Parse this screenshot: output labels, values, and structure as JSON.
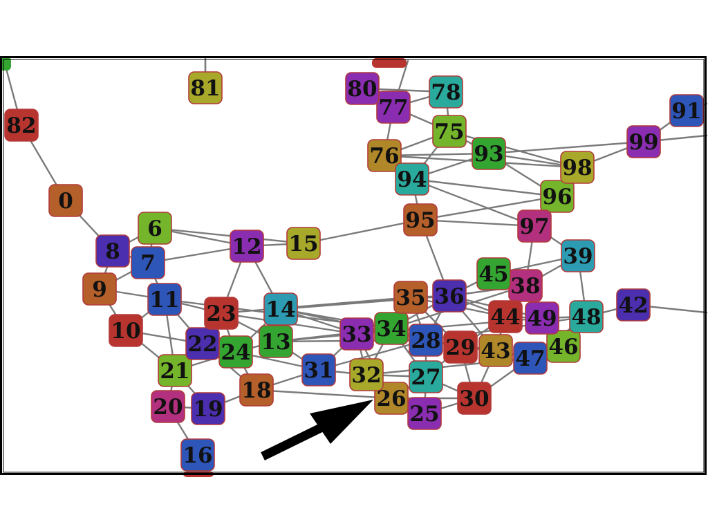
{
  "colors": {
    "edge": "#7a7a7a",
    "node_border": "#b23a3a",
    "frame": "#000000",
    "arrow": "#000000",
    "red": "#b8352f",
    "orange": "#b5602a",
    "olive": "#a8a82a",
    "green": "#35a532",
    "lime": "#74b52c",
    "teal": "#2aa99d",
    "cyan": "#2d9cb2",
    "blue": "#2e55b8",
    "indigo": "#4b2fae",
    "purple": "#8a2db0",
    "magenta": "#b3307e",
    "gold": "#b0882a"
  },
  "nodes": [
    {
      "id": "0",
      "color": "orange"
    },
    {
      "id": "6",
      "color": "lime"
    },
    {
      "id": "7",
      "color": "blue"
    },
    {
      "id": "8",
      "color": "indigo"
    },
    {
      "id": "9",
      "color": "orange"
    },
    {
      "id": "10",
      "color": "red"
    },
    {
      "id": "11",
      "color": "blue"
    },
    {
      "id": "12",
      "color": "purple"
    },
    {
      "id": "13",
      "color": "green"
    },
    {
      "id": "14",
      "color": "cyan"
    },
    {
      "id": "15",
      "color": "olive"
    },
    {
      "id": "16",
      "color": "blue"
    },
    {
      "id": "18",
      "color": "orange"
    },
    {
      "id": "19",
      "color": "indigo"
    },
    {
      "id": "20",
      "color": "magenta"
    },
    {
      "id": "21",
      "color": "lime"
    },
    {
      "id": "22",
      "color": "indigo"
    },
    {
      "id": "23",
      "color": "red"
    },
    {
      "id": "24",
      "color": "green"
    },
    {
      "id": "25",
      "color": "purple"
    },
    {
      "id": "26",
      "color": "gold"
    },
    {
      "id": "27",
      "color": "teal"
    },
    {
      "id": "28",
      "color": "blue"
    },
    {
      "id": "29",
      "color": "red"
    },
    {
      "id": "30",
      "color": "red"
    },
    {
      "id": "31",
      "color": "blue"
    },
    {
      "id": "32",
      "color": "olive"
    },
    {
      "id": "33",
      "color": "purple"
    },
    {
      "id": "34",
      "color": "green"
    },
    {
      "id": "35",
      "color": "orange"
    },
    {
      "id": "36",
      "color": "indigo"
    },
    {
      "id": "38",
      "color": "magenta"
    },
    {
      "id": "39",
      "color": "cyan"
    },
    {
      "id": "42",
      "color": "indigo"
    },
    {
      "id": "43",
      "color": "gold"
    },
    {
      "id": "44",
      "color": "red"
    },
    {
      "id": "45",
      "color": "green"
    },
    {
      "id": "46",
      "color": "lime"
    },
    {
      "id": "47",
      "color": "blue"
    },
    {
      "id": "48",
      "color": "teal"
    },
    {
      "id": "49",
      "color": "purple"
    },
    {
      "id": "75",
      "color": "lime"
    },
    {
      "id": "76",
      "color": "gold"
    },
    {
      "id": "77",
      "color": "purple"
    },
    {
      "id": "78",
      "color": "teal"
    },
    {
      "id": "80",
      "color": "purple"
    },
    {
      "id": "81",
      "color": "olive"
    },
    {
      "id": "82",
      "color": "red"
    },
    {
      "id": "91",
      "color": "blue"
    },
    {
      "id": "93",
      "color": "green"
    },
    {
      "id": "94",
      "color": "teal"
    },
    {
      "id": "95",
      "color": "orange"
    },
    {
      "id": "96",
      "color": "lime"
    },
    {
      "id": "97",
      "color": "magenta"
    },
    {
      "id": "98",
      "color": "olive"
    },
    {
      "id": "99",
      "color": "purple"
    }
  ],
  "edges": [
    [
      "82",
      "0"
    ],
    [
      "0",
      "8"
    ],
    [
      "8",
      "7"
    ],
    [
      "8",
      "6"
    ],
    [
      "8",
      "9"
    ],
    [
      "7",
      "6"
    ],
    [
      "7",
      "12"
    ],
    [
      "6",
      "12"
    ],
    [
      "6",
      "15"
    ],
    [
      "12",
      "15"
    ],
    [
      "15",
      "95"
    ],
    [
      "7",
      "9"
    ],
    [
      "9",
      "10"
    ],
    [
      "9",
      "11"
    ],
    [
      "7",
      "11"
    ],
    [
      "10",
      "11"
    ],
    [
      "10",
      "22"
    ],
    [
      "11",
      "22"
    ],
    [
      "11",
      "23"
    ],
    [
      "12",
      "23"
    ],
    [
      "12",
      "14"
    ],
    [
      "10",
      "21"
    ],
    [
      "11",
      "21"
    ],
    [
      "21",
      "20"
    ],
    [
      "21",
      "19"
    ],
    [
      "20",
      "19"
    ],
    [
      "20",
      "16"
    ],
    [
      "21",
      "22"
    ],
    [
      "21",
      "24"
    ],
    [
      "22",
      "24"
    ],
    [
      "22",
      "23"
    ],
    [
      "23",
      "24"
    ],
    [
      "23",
      "13"
    ],
    [
      "14",
      "13"
    ],
    [
      "14",
      "24"
    ],
    [
      "13",
      "24"
    ],
    [
      "13",
      "31"
    ],
    [
      "24",
      "18"
    ],
    [
      "18",
      "31"
    ],
    [
      "19",
      "18"
    ],
    [
      "22",
      "18"
    ],
    [
      "14",
      "33"
    ],
    [
      "13",
      "33"
    ],
    [
      "14",
      "34"
    ],
    [
      "13",
      "34"
    ],
    [
      "11",
      "34"
    ],
    [
      "23",
      "33"
    ],
    [
      "23",
      "35"
    ],
    [
      "14",
      "35"
    ],
    [
      "14",
      "36"
    ],
    [
      "31",
      "32"
    ],
    [
      "31",
      "33"
    ],
    [
      "33",
      "32"
    ],
    [
      "33",
      "34"
    ],
    [
      "34",
      "32"
    ],
    [
      "34",
      "28"
    ],
    [
      "34",
      "27"
    ],
    [
      "32",
      "27"
    ],
    [
      "32",
      "26"
    ],
    [
      "33",
      "26"
    ],
    [
      "26",
      "27"
    ],
    [
      "26",
      "25"
    ],
    [
      "27",
      "25"
    ],
    [
      "27",
      "28"
    ],
    [
      "28",
      "29"
    ],
    [
      "27",
      "29"
    ],
    [
      "29",
      "30"
    ],
    [
      "27",
      "30"
    ],
    [
      "25",
      "30"
    ],
    [
      "28",
      "43"
    ],
    [
      "29",
      "43"
    ],
    [
      "43",
      "44"
    ],
    [
      "43",
      "47"
    ],
    [
      "43",
      "30"
    ],
    [
      "47",
      "46"
    ],
    [
      "47",
      "48"
    ],
    [
      "46",
      "48"
    ],
    [
      "49",
      "48"
    ],
    [
      "44",
      "49"
    ],
    [
      "35",
      "36"
    ],
    [
      "36",
      "45"
    ],
    [
      "36",
      "44"
    ],
    [
      "36",
      "38"
    ],
    [
      "45",
      "38"
    ],
    [
      "45",
      "39"
    ],
    [
      "38",
      "39"
    ],
    [
      "38",
      "49"
    ],
    [
      "44",
      "38"
    ],
    [
      "39",
      "48"
    ],
    [
      "48",
      "42"
    ],
    [
      "36",
      "49"
    ],
    [
      "35",
      "44"
    ],
    [
      "34",
      "36"
    ],
    [
      "28",
      "36"
    ],
    [
      "29",
      "44"
    ],
    [
      "30",
      "47"
    ],
    [
      "26",
      "30"
    ],
    [
      "18",
      "26"
    ],
    [
      "24",
      "31"
    ],
    [
      "95",
      "36"
    ],
    [
      "95",
      "97"
    ],
    [
      "95",
      "96"
    ],
    [
      "95",
      "94"
    ],
    [
      "97",
      "96"
    ],
    [
      "97",
      "39"
    ],
    [
      "97",
      "38"
    ],
    [
      "94",
      "96"
    ],
    [
      "94",
      "97"
    ],
    [
      "94",
      "76"
    ],
    [
      "94",
      "75"
    ],
    [
      "94",
      "93"
    ],
    [
      "76",
      "75"
    ],
    [
      "76",
      "93"
    ],
    [
      "76",
      "77"
    ],
    [
      "77",
      "75"
    ],
    [
      "77",
      "80"
    ],
    [
      "80",
      "78"
    ],
    [
      "77",
      "78"
    ],
    [
      "78",
      "75"
    ],
    [
      "75",
      "93"
    ],
    [
      "93",
      "98"
    ],
    [
      "93",
      "96"
    ],
    [
      "98",
      "96"
    ],
    [
      "98",
      "99"
    ],
    [
      "75",
      "98"
    ],
    [
      "76",
      "98"
    ],
    [
      "99",
      "91"
    ],
    [
      "93",
      "99"
    ],
    [
      "81",
      "81t"
    ],
    [
      "33",
      "49"
    ],
    [
      "34",
      "38"
    ],
    [
      "28",
      "48"
    ],
    [
      "32",
      "47"
    ],
    [
      "31",
      "28"
    ],
    [
      "13",
      "28"
    ],
    [
      "14",
      "29"
    ],
    [
      "35",
      "29"
    ],
    [
      "35",
      "28"
    ],
    [
      "36",
      "43"
    ]
  ],
  "partial_edges": [
    {
      "from": "82",
      "to": "offscreen-top-left"
    },
    {
      "from": "91",
      "to": "offscreen-right"
    },
    {
      "from": "42",
      "to": "offscreen-right"
    },
    {
      "from": "77",
      "to": "offscreen-top"
    },
    {
      "from": "81",
      "to": "offscreen-top"
    }
  ]
}
